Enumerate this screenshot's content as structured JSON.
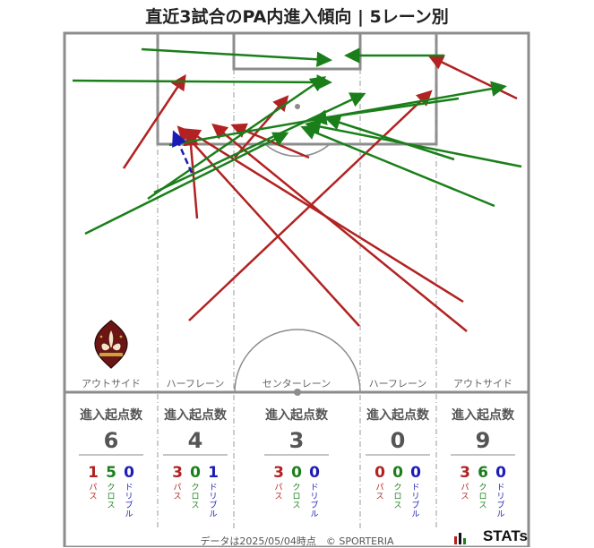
{
  "title": "直近3試合のPA内進入傾向 | 5レーン別",
  "lanes": [
    {
      "label": "アウトサイド",
      "entry_label": "進入起点数",
      "total": "6",
      "pass": "1",
      "cross": "5",
      "dribble": "0"
    },
    {
      "label": "ハーフレーン",
      "entry_label": "進入起点数",
      "total": "4",
      "pass": "3",
      "cross": "0",
      "dribble": "1"
    },
    {
      "label": "センターレーン",
      "entry_label": "進入起点数",
      "total": "3",
      "pass": "3",
      "cross": "0",
      "dribble": "0"
    },
    {
      "label": "ハーフレーン",
      "entry_label": "進入起点数",
      "total": "0",
      "pass": "0",
      "cross": "0",
      "dribble": "0"
    },
    {
      "label": "アウトサイド",
      "entry_label": "進入起点数",
      "total": "9",
      "pass": "3",
      "cross": "6",
      "dribble": "0"
    }
  ],
  "type_labels": {
    "pass": "パス",
    "cross": "クロス",
    "dribble": "ドリブル"
  },
  "colors": {
    "pass": "#b22222",
    "cross": "#1a7f1a",
    "dribble": "#1c1cb4",
    "pitch": "#8c8c8c"
  },
  "footer": "データは2025/05/04時点　© SPORTERIA",
  "brand": "STATs",
  "crest_icon": "fleur-de-lis-crest-icon"
}
